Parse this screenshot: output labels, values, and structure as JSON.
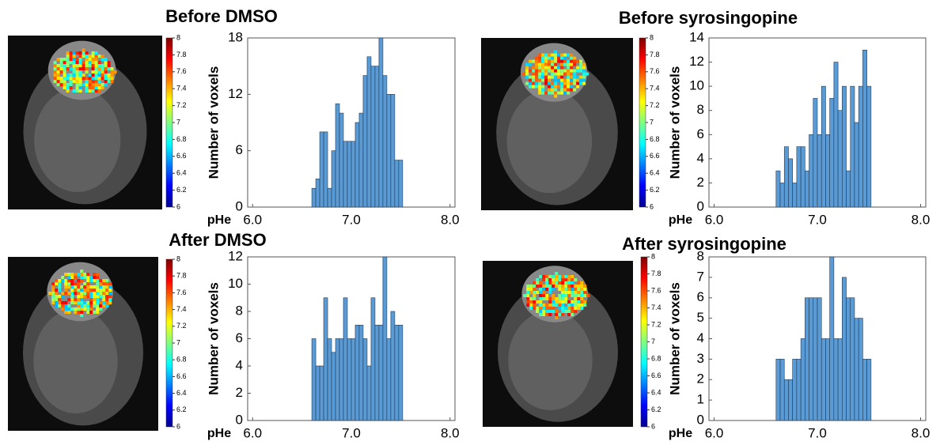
{
  "chart_data": [
    {
      "type": "histogram",
      "title": "Before DMSO",
      "xlabel": "pHe",
      "ylabel": "Number of voxels",
      "color": "#5b9bd5",
      "bins": [
        6.6,
        6.64,
        6.68,
        6.72,
        6.76,
        6.8,
        6.84,
        6.88,
        6.92,
        6.96,
        7,
        7.04,
        7.08,
        7.12,
        7.16,
        7.2,
        7.24,
        7.28,
        7.32,
        7.36,
        7.4,
        7.44,
        7.48,
        7.52
      ],
      "values": [
        2,
        3,
        8,
        8,
        2,
        6,
        11,
        10,
        7,
        7,
        7,
        9,
        10,
        14,
        16,
        15,
        15,
        18,
        14,
        12,
        12,
        5,
        5
      ],
      "xlim": [
        5.95,
        8.05
      ],
      "xticks": [
        {
          "value": 6,
          "label": "6.0"
        },
        {
          "value": 7,
          "label": "7.0"
        },
        {
          "value": 8,
          "label": "8.0"
        }
      ],
      "ylim": [
        0,
        18
      ],
      "yticks": [
        0,
        6,
        12,
        18
      ],
      "colorbar_lim": [
        6,
        8
      ],
      "colorbar_ticks": [
        6,
        6.2,
        6.4,
        6.6,
        6.8,
        7,
        7.2,
        7.4,
        7.6,
        7.8,
        8
      ]
    },
    {
      "type": "histogram",
      "title": "Before syrosingopine",
      "xlabel": "pHe",
      "ylabel": "Number of voxels",
      "color": "#5b9bd5",
      "bins": [
        6.6,
        6.64,
        6.68,
        6.72,
        6.76,
        6.8,
        6.84,
        6.88,
        6.92,
        6.96,
        7,
        7.04,
        7.08,
        7.12,
        7.16,
        7.2,
        7.24,
        7.28,
        7.32,
        7.36,
        7.4,
        7.44,
        7.48,
        7.52
      ],
      "values": [
        3,
        2,
        5,
        4,
        2,
        5,
        5,
        3,
        6,
        9,
        6,
        10,
        6,
        9,
        12,
        8,
        10,
        3,
        10,
        7,
        10,
        13,
        10
      ],
      "xlim": [
        5.95,
        8.05
      ],
      "xticks": [
        {
          "value": 6,
          "label": "6.0"
        },
        {
          "value": 7,
          "label": "7.0"
        },
        {
          "value": 8,
          "label": "8.0"
        }
      ],
      "ylim": [
        0,
        14
      ],
      "yticks": [
        0,
        2,
        4,
        6,
        8,
        10,
        12,
        14
      ],
      "colorbar_lim": [
        6,
        8
      ],
      "colorbar_ticks": [
        6,
        6.2,
        6.4,
        6.6,
        6.8,
        7,
        7.2,
        7.4,
        7.6,
        7.8,
        8
      ]
    },
    {
      "type": "histogram",
      "title": "After DMSO",
      "xlabel": "pHe",
      "ylabel": "Number of voxels",
      "color": "#5b9bd5",
      "bins": [
        6.6,
        6.64,
        6.68,
        6.72,
        6.76,
        6.8,
        6.84,
        6.88,
        6.92,
        6.96,
        7,
        7.04,
        7.08,
        7.12,
        7.16,
        7.2,
        7.24,
        7.28,
        7.32,
        7.36,
        7.4,
        7.44,
        7.48,
        7.52
      ],
      "values": [
        6,
        4,
        4,
        9,
        6,
        5,
        6,
        6,
        9,
        6,
        6,
        7,
        7,
        6,
        4,
        9,
        7,
        7,
        12,
        6,
        8,
        7,
        7
      ],
      "xlim": [
        5.95,
        8.05
      ],
      "xticks": [
        {
          "value": 6,
          "label": "6.0"
        },
        {
          "value": 7,
          "label": "7.0"
        },
        {
          "value": 8,
          "label": "8.0"
        }
      ],
      "ylim": [
        0,
        12
      ],
      "yticks": [
        0,
        2,
        4,
        6,
        8,
        10,
        12
      ],
      "colorbar_lim": [
        6,
        8
      ],
      "colorbar_ticks": [
        6,
        6.2,
        6.4,
        6.6,
        6.8,
        7,
        7.2,
        7.4,
        7.6,
        7.8,
        8
      ]
    },
    {
      "type": "histogram",
      "title": "After syrosingopine",
      "xlabel": "pHe",
      "ylabel": "Number of voxels",
      "color": "#5b9bd5",
      "bins": [
        6.6,
        6.64,
        6.68,
        6.72,
        6.76,
        6.8,
        6.84,
        6.88,
        6.92,
        6.96,
        7,
        7.04,
        7.08,
        7.12,
        7.16,
        7.2,
        7.24,
        7.28,
        7.32,
        7.36,
        7.4,
        7.44,
        7.48,
        7.52
      ],
      "values": [
        3,
        3,
        2,
        2,
        3,
        3,
        4,
        6,
        6,
        6,
        6,
        4,
        4,
        8,
        4,
        4,
        7,
        6,
        6,
        5,
        5,
        3,
        3
      ],
      "xlim": [
        5.95,
        8.05
      ],
      "xticks": [
        {
          "value": 6,
          "label": "6.0"
        },
        {
          "value": 7,
          "label": "7.0"
        },
        {
          "value": 8,
          "label": "8.0"
        }
      ],
      "ylim": [
        0,
        8
      ],
      "yticks": [
        0,
        1,
        2,
        3,
        4,
        5,
        6,
        7,
        8
      ],
      "colorbar_lim": [
        6,
        8
      ],
      "colorbar_ticks": [
        6,
        6.2,
        6.4,
        6.6,
        6.8,
        7,
        7.2,
        7.4,
        7.6,
        7.8,
        8
      ]
    }
  ]
}
